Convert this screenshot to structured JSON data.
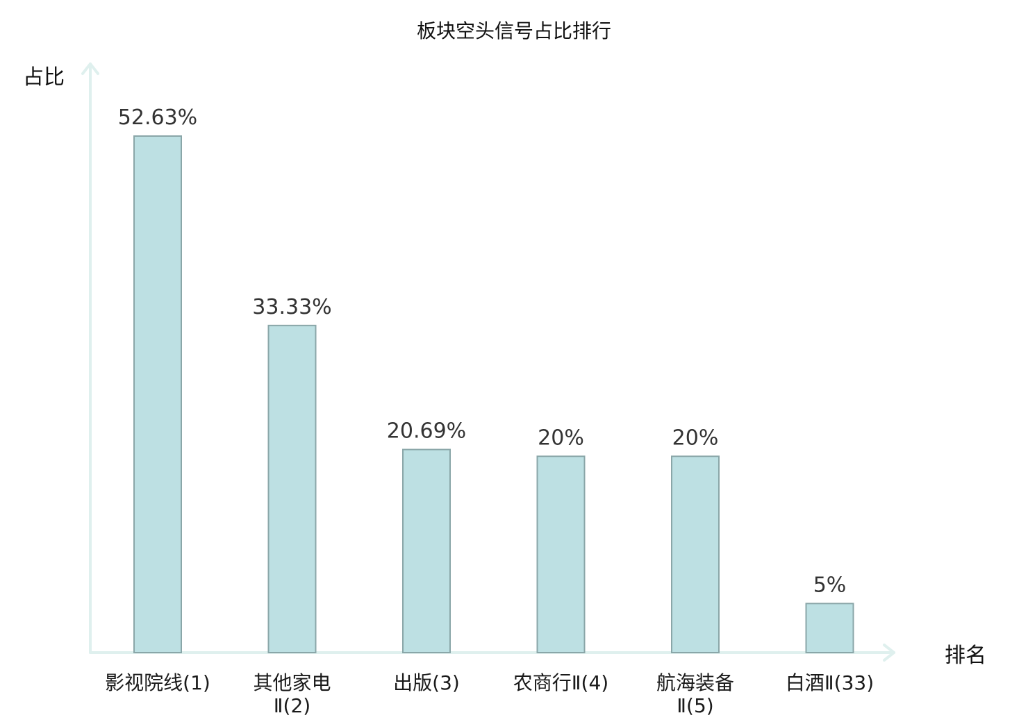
{
  "chart_data": {
    "type": "bar",
    "title": "板块空头信号占比排行",
    "ylabel": "占比",
    "xlabel": "排名",
    "ylim": [
      0,
      60
    ],
    "grid": false,
    "categories": [
      {
        "name": "影视院线",
        "rank": "(1)",
        "highlight": false
      },
      {
        "name": "其他家电Ⅱ",
        "rank": "(2)",
        "highlight": false
      },
      {
        "name": "出版",
        "rank": "(3)",
        "highlight": false
      },
      {
        "name": "农商行Ⅱ",
        "rank": "(4)",
        "highlight": false
      },
      {
        "name": "航海装备Ⅱ",
        "rank": "(5)",
        "highlight": false
      },
      {
        "name": "白酒Ⅱ",
        "rank": "(33)",
        "highlight": true
      }
    ],
    "labels": [
      "影视院线(1)",
      "其他家电Ⅱ(2)",
      "出版(3)",
      "农商行Ⅱ(4)",
      "航海装备Ⅱ(5)",
      "白酒Ⅱ(33)"
    ],
    "values": [
      52.63,
      33.33,
      20.69,
      20,
      20,
      5
    ],
    "value_labels": [
      "52.63%",
      "33.33%",
      "20.69%",
      "20%",
      "20%",
      "5%"
    ]
  },
  "colors": {
    "bar_fill": "#bde0e3",
    "bar_stroke": "#8aa6a8",
    "axis": "#dff0ee",
    "text": "#1a1a1a",
    "value_text": "#333333",
    "highlight": "#e0151b"
  }
}
